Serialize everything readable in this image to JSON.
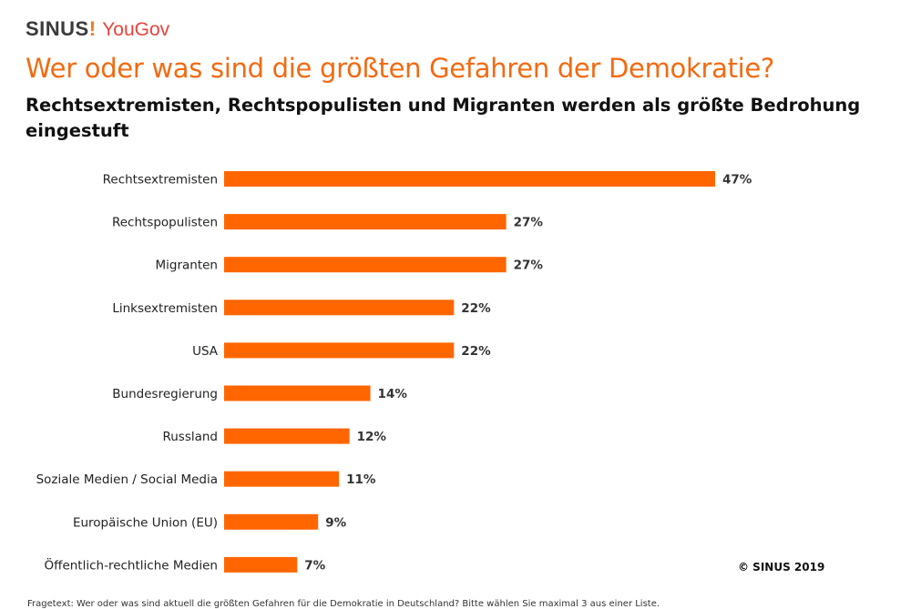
{
  "logo": {
    "sinus": "SINUS",
    "divider": "!",
    "yougov": "YouGov"
  },
  "title": "Wer oder was sind die größten Gefahren der Demokratie?",
  "subtitle": "Rechtsextremisten, Rechtspopulisten und Migranten werden als größte Bedrohung eingestuft",
  "copyright": "© SINUS 2019",
  "footnote": "Fragetext: Wer oder was sind aktuell die größten Gefahren für die Demokratie in Deutschland? Bitte wählen Sie maximal 3 aus einer Liste.",
  "colors": {
    "bar": "#FF6600",
    "title": "#F26A10"
  },
  "chart_data": {
    "type": "bar",
    "orientation": "horizontal",
    "categories": [
      "Rechtsextremisten",
      "Rechtspopulisten",
      "Migranten",
      "Linksextremisten",
      "USA",
      "Bundesregierung",
      "Russland",
      "Soziale Medien / Social Media",
      "Europäische Union (EU)",
      "Öffentlich-rechtliche Medien"
    ],
    "values": [
      47,
      27,
      27,
      22,
      22,
      14,
      12,
      11,
      9,
      7
    ],
    "labels": [
      "47%",
      "27%",
      "27%",
      "22%",
      "22%",
      "14%",
      "12%",
      "11%",
      "9%",
      "7%"
    ],
    "unit": "%",
    "grid": false,
    "legend": "none"
  }
}
